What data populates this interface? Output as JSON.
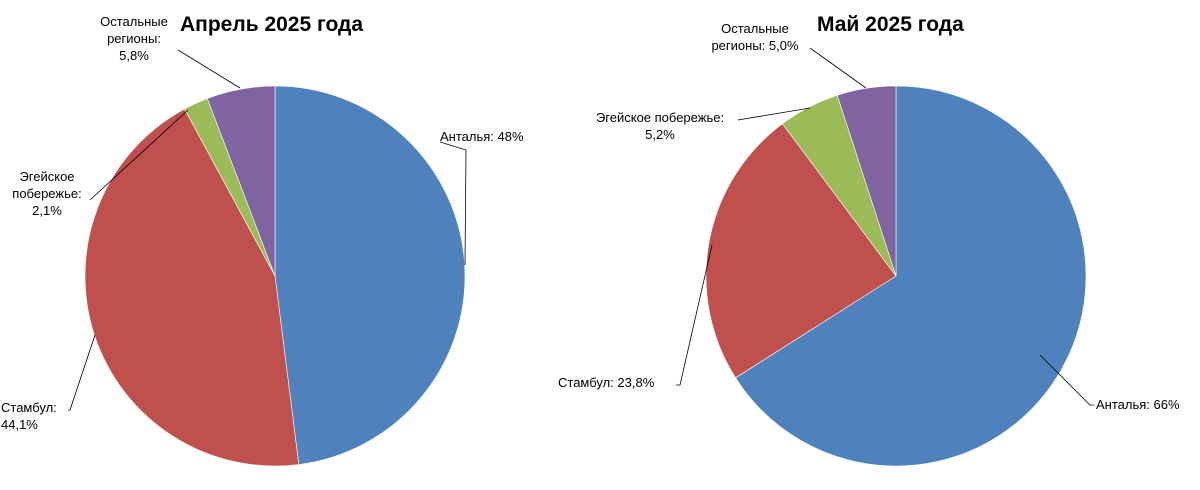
{
  "chart_data": [
    {
      "type": "pie",
      "title": "Апрель 2025 года",
      "slices": [
        {
          "label_lines": [
            "Анталья: 48%"
          ],
          "value": 48.0,
          "color": "#4F81BD"
        },
        {
          "label_lines": [
            "Стамбул:",
            "44,1%"
          ],
          "value": 44.1,
          "color": "#C0504D"
        },
        {
          "label_lines": [
            "Эгейское",
            "побережье:",
            "2,1%"
          ],
          "value": 2.1,
          "color": "#9BBB59"
        },
        {
          "label_lines": [
            "Остальные",
            "регионы:",
            "5,8%"
          ],
          "value": 5.8,
          "color": "#8064A2"
        }
      ]
    },
    {
      "type": "pie",
      "title": "Май 2025 года",
      "slices": [
        {
          "label_lines": [
            "Анталья: 66%"
          ],
          "value": 66.0,
          "color": "#4F81BD"
        },
        {
          "label_lines": [
            "Стамбул: 23,8%"
          ],
          "value": 23.8,
          "color": "#C0504D"
        },
        {
          "label_lines": [
            "Эгейское побережье:",
            "5,2%"
          ],
          "value": 5.2,
          "color": "#9BBB59"
        },
        {
          "label_lines": [
            "Остальные",
            "регионы: 5,0%"
          ],
          "value": 5.0,
          "color": "#8064A2"
        }
      ]
    }
  ]
}
